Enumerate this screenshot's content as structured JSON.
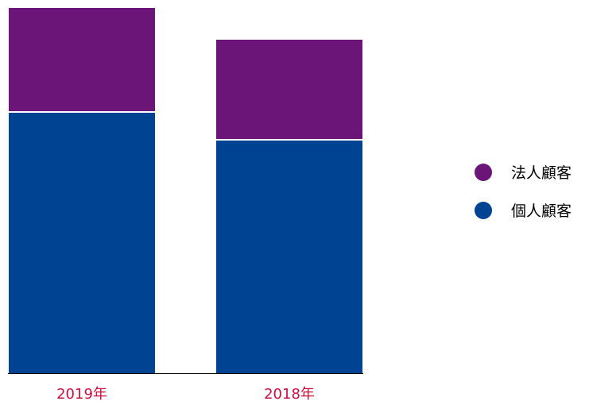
{
  "chart_data": {
    "type": "bar",
    "stacked": true,
    "categories": [
      "2019年",
      "2018年"
    ],
    "series": [
      {
        "name": "個人顧客",
        "values": [
          329,
          294
        ]
      },
      {
        "name": "法人顧客",
        "values": [
          131,
          126
        ]
      }
    ],
    "ylim": [
      0,
      460
    ],
    "grid": false,
    "legend_position": "right",
    "colors": {
      "個人顧客": "#004393",
      "法人顧客": "#6c1579",
      "tick_label": "#c8103e",
      "axis": "#000000",
      "legend_text": "#000000"
    }
  }
}
